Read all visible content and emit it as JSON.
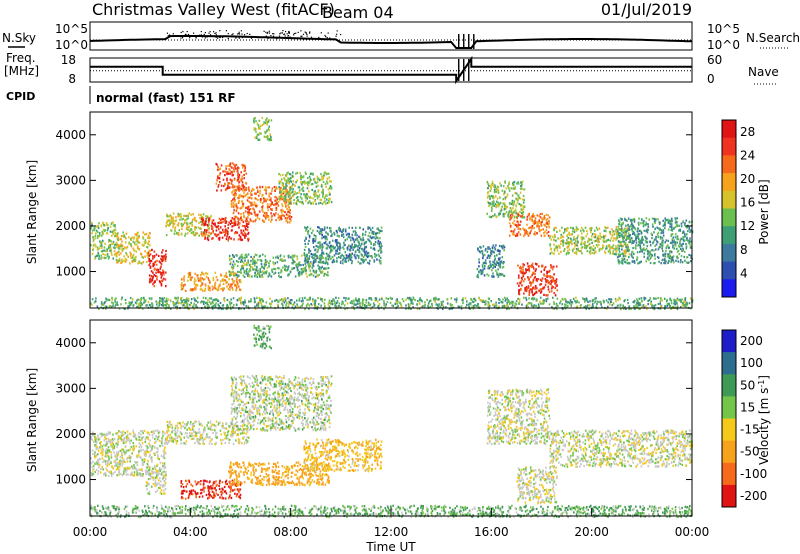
{
  "header": {
    "title": "Christmas Valley West (fitACF)",
    "beam": "Beam 04",
    "date": "01/Jul/2019"
  },
  "labels": {
    "nsky": "N.Sky",
    "nsearch": "N.Search",
    "freq": "Freq.",
    "mhz": "[MHz]",
    "nave": "Nave",
    "cpid": "CPID",
    "cpid_value": "normal (fast) 151 RF"
  },
  "chart_data": [
    {
      "type": "line",
      "panel": "noise",
      "left_ticks": [
        "10^5",
        "10^0"
      ],
      "right_ticks": [
        "10^5",
        "10^0"
      ],
      "note": "N.Sky (solid) and N.Search (dotted) noise levels"
    },
    {
      "type": "line",
      "panel": "frequency-nave",
      "left_ticks": [
        "18",
        "8"
      ],
      "right_ticks": [
        "60",
        "0"
      ],
      "freq_series": {
        "x": [
          0,
          2.9,
          2.9,
          14.6,
          14.6,
          15.2,
          15.2,
          24
        ],
        "y": [
          14.5,
          14.5,
          10.8,
          10.8,
          8,
          18,
          14.5,
          14.5
        ]
      },
      "nave_series": {
        "x": [
          0,
          24
        ],
        "y": [
          28,
          28
        ]
      }
    },
    {
      "type": "heatmap",
      "panel": "power",
      "ylabel": "Slant Range [km]",
      "yticks": [
        "1000",
        "2000",
        "3000",
        "4000"
      ],
      "ylim": [
        200,
        4500
      ],
      "colorbar": {
        "label": "Power [dB]",
        "ticks": [
          "4",
          "8",
          "12",
          "16",
          "20",
          "24",
          "28"
        ],
        "range": [
          0,
          30
        ]
      },
      "regions": [
        {
          "t0": 0.0,
          "t1": 1.0,
          "r0": 1300,
          "r1": 2100,
          "val": 14
        },
        {
          "t0": 1.0,
          "t1": 2.4,
          "r0": 1200,
          "r1": 1900,
          "val": 17
        },
        {
          "t0": 2.3,
          "t1": 3.0,
          "r0": 700,
          "r1": 1500,
          "val": 27
        },
        {
          "t0": 3.0,
          "t1": 4.8,
          "r0": 1800,
          "r1": 2300,
          "val": 16
        },
        {
          "t0": 4.4,
          "t1": 6.3,
          "r0": 1700,
          "r1": 2200,
          "val": 26
        },
        {
          "t0": 5.6,
          "t1": 8.0,
          "r0": 2100,
          "r1": 2900,
          "val": 22
        },
        {
          "t0": 7.5,
          "t1": 9.6,
          "r0": 2500,
          "r1": 3200,
          "val": 14
        },
        {
          "t0": 5.0,
          "t1": 6.2,
          "r0": 2800,
          "r1": 3400,
          "val": 24
        },
        {
          "t0": 6.5,
          "t1": 7.2,
          "r0": 3900,
          "r1": 4400,
          "val": 14
        },
        {
          "t0": 3.6,
          "t1": 6.0,
          "r0": 600,
          "r1": 1000,
          "val": 20
        },
        {
          "t0": 5.5,
          "t1": 9.5,
          "r0": 900,
          "r1": 1400,
          "val": 12
        },
        {
          "t0": 8.5,
          "t1": 11.6,
          "r0": 1200,
          "r1": 2000,
          "val": 9
        },
        {
          "t0": 15.8,
          "t1": 17.3,
          "r0": 2200,
          "r1": 3000,
          "val": 14
        },
        {
          "t0": 16.7,
          "t1": 18.3,
          "r0": 1800,
          "r1": 2300,
          "val": 22
        },
        {
          "t0": 17.0,
          "t1": 18.6,
          "r0": 500,
          "r1": 1200,
          "val": 25
        },
        {
          "t0": 18.3,
          "t1": 21.5,
          "r0": 1400,
          "r1": 2000,
          "val": 15
        },
        {
          "t0": 21.0,
          "t1": 24.0,
          "r0": 1200,
          "r1": 2200,
          "val": 10
        },
        {
          "t0": 15.4,
          "t1": 16.5,
          "r0": 900,
          "r1": 1600,
          "val": 9
        },
        {
          "t0": 0.0,
          "t1": 24.0,
          "r0": 200,
          "r1": 450,
          "val": 12
        }
      ]
    },
    {
      "type": "heatmap",
      "panel": "velocity",
      "ylabel": "Slant Range [km]",
      "yticks": [
        "1000",
        "2000",
        "3000",
        "4000"
      ],
      "ylim": [
        200,
        4500
      ],
      "xlabel": "Time UT",
      "xticks": [
        "00:00",
        "04:00",
        "08:00",
        "12:00",
        "16:00",
        "20:00",
        "00:00"
      ],
      "xlim": [
        0,
        24
      ],
      "colorbar": {
        "label": "Velocity [m s^-1]",
        "ticks": [
          "200",
          "100",
          "50",
          "15",
          "-15",
          "-50",
          "-100",
          "-200"
        ],
        "range": [
          -250,
          250
        ]
      },
      "regions": [
        {
          "t0": 0.0,
          "t1": 3.0,
          "r0": 1100,
          "r1": 2100,
          "val": 0
        },
        {
          "t0": 2.2,
          "t1": 3.0,
          "r0": 700,
          "r1": 1300,
          "val": 0
        },
        {
          "t0": 3.0,
          "t1": 6.3,
          "r0": 1800,
          "r1": 2300,
          "val": 0
        },
        {
          "t0": 5.6,
          "t1": 9.6,
          "r0": 2100,
          "r1": 3300,
          "val": 5
        },
        {
          "t0": 6.5,
          "t1": 7.2,
          "r0": 3900,
          "r1": 4400,
          "val": 40
        },
        {
          "t0": 3.6,
          "t1": 6.0,
          "r0": 600,
          "r1": 1000,
          "val": -180
        },
        {
          "t0": 5.5,
          "t1": 9.5,
          "r0": 900,
          "r1": 1400,
          "val": -70
        },
        {
          "t0": 8.5,
          "t1": 11.6,
          "r0": 1200,
          "r1": 1900,
          "val": -40
        },
        {
          "t0": 15.8,
          "t1": 18.3,
          "r0": 1800,
          "r1": 3000,
          "val": 0
        },
        {
          "t0": 17.0,
          "t1": 18.6,
          "r0": 500,
          "r1": 1300,
          "val": 0
        },
        {
          "t0": 18.3,
          "t1": 24.0,
          "r0": 1300,
          "r1": 2100,
          "val": 0
        },
        {
          "t0": 0.0,
          "t1": 24.0,
          "r0": 200,
          "r1": 450,
          "val": 30
        }
      ]
    }
  ]
}
